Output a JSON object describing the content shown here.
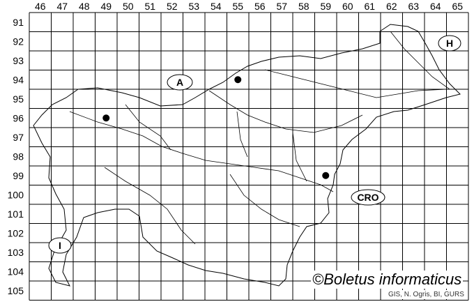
{
  "map": {
    "columns": [
      "46",
      "47",
      "48",
      "49",
      "50",
      "51",
      "52",
      "53",
      "54",
      "55",
      "56",
      "57",
      "58",
      "59",
      "60",
      "61",
      "62",
      "63",
      "64",
      "65"
    ],
    "rows": [
      "91",
      "92",
      "93",
      "94",
      "95",
      "96",
      "97",
      "98",
      "99",
      "100",
      "101",
      "102",
      "103",
      "104",
      "105"
    ],
    "records": [
      {
        "col": "55",
        "row": "94"
      },
      {
        "col": "49",
        "row": "96"
      },
      {
        "col": "59",
        "row": "99"
      }
    ],
    "countries": [
      {
        "code": "A"
      },
      {
        "code": "H"
      },
      {
        "code": "CRO"
      },
      {
        "code": "I"
      }
    ],
    "dot_color": "#000000",
    "line_color": "#000000"
  },
  "copyright": "©Boletus informaticus",
  "credit": "GIS, N. Ogris, BI, GURS"
}
